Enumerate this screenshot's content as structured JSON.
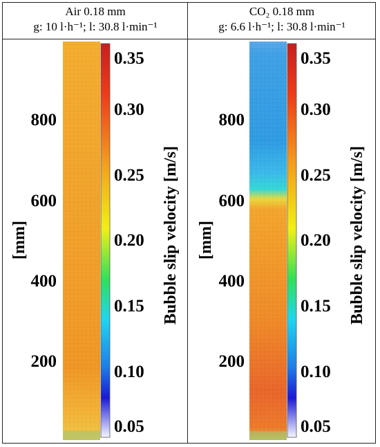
{
  "panels": [
    {
      "header_line1": "Air 0.18 mm",
      "header_line2": "g: 10 l·h⁻¹; l: 30.8 l·min⁻¹",
      "y_label": "[mm]",
      "y_ticks": [
        "800",
        "600",
        "400",
        "200"
      ],
      "colorbar_label": "Bubble slip velocity [m/s]",
      "colorbar_ticks": [
        "0.35",
        "0.30",
        "0.25",
        "0.20",
        "0.15",
        "0.10",
        "0.05"
      ]
    },
    {
      "header_line1": "CO₂ 0.18 mm",
      "header_line2": "g: 6.6 l·h⁻¹; l: 30.8 l·min⁻¹",
      "y_label": "[mm]",
      "y_ticks": [
        "800",
        "600",
        "400",
        "200"
      ],
      "colorbar_label": "Bubble slip velocity [m/s]",
      "colorbar_ticks": [
        "0.35",
        "0.30",
        "0.25",
        "0.20",
        "0.15",
        "0.10",
        "0.05"
      ]
    }
  ],
  "colors": {
    "jet_red": "#d62a1e",
    "jet_orange": "#f08a1c",
    "jet_yellow": "#f2f013",
    "jet_cyan": "#22d9ee",
    "jet_blue": "#1b1bd9",
    "jet_white": "#f4f4ff",
    "air_column": "#f2a32a",
    "co2_top": "#4aa6e6",
    "co2_bottom": "#e8742a"
  }
}
